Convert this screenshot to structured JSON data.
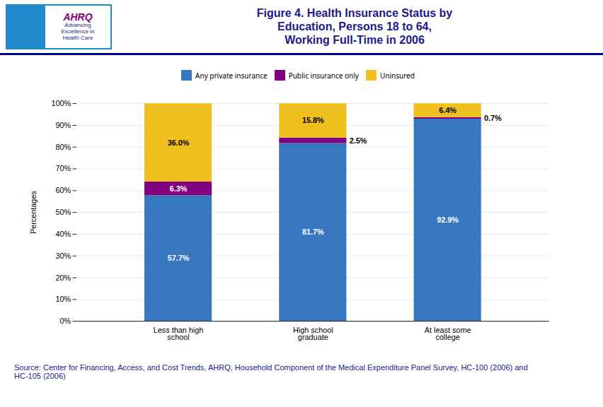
{
  "chart_data": {
    "type": "bar",
    "stacked": true,
    "title": "Figure 4.  Health Insurance Status by\nEducation, Persons 18 to 64,\nWorking Full-Time in 2006",
    "categories": [
      "Less than high\nschool",
      "High school\ngraduate",
      "At least some\ncollege"
    ],
    "series": [
      {
        "name": "Any private insurance",
        "color": "#3777c0",
        "values": [
          57.7,
          81.7,
          92.9
        ],
        "value_labels": [
          "57.7%",
          "81.7%",
          "92.9%"
        ]
      },
      {
        "name": "Public insurance only",
        "color": "#800080",
        "values": [
          6.3,
          2.5,
          0.7
        ],
        "value_labels": [
          "6.3%",
          "2.5%",
          "0.7%"
        ]
      },
      {
        "name": "Uninsured",
        "color": "#f0c020",
        "values": [
          36.0,
          15.8,
          6.4
        ],
        "value_labels": [
          "36.0%",
          "15.8%",
          "6.4%"
        ]
      }
    ],
    "ylabel": "Percentages",
    "ylim": [
      0,
      100
    ],
    "yticks": [
      {
        "value": 0,
        "label": "0%"
      },
      {
        "value": 10,
        "label": "10%"
      },
      {
        "value": 20,
        "label": "20%"
      },
      {
        "value": 30,
        "label": "30%"
      },
      {
        "value": 40,
        "label": "40%"
      },
      {
        "value": 50,
        "label": "50%"
      },
      {
        "value": 60,
        "label": "60%"
      },
      {
        "value": 70,
        "label": "70%"
      },
      {
        "value": 80,
        "label": "80%"
      },
      {
        "value": 90,
        "label": "90%"
      },
      {
        "value": 100,
        "label": "100%"
      }
    ],
    "grid": true,
    "legend": "top",
    "data_labels": true,
    "annotations": [
      "AHRQ",
      "Advancing\nExcellence in\nHealth Care"
    ],
    "source": "Source: Center for Financing, Access, and Cost Trends, AHRQ, Household Component of the Medical Expenditure Panel Survey, HC-100 (2006) and\nHC-105 (2006)"
  }
}
